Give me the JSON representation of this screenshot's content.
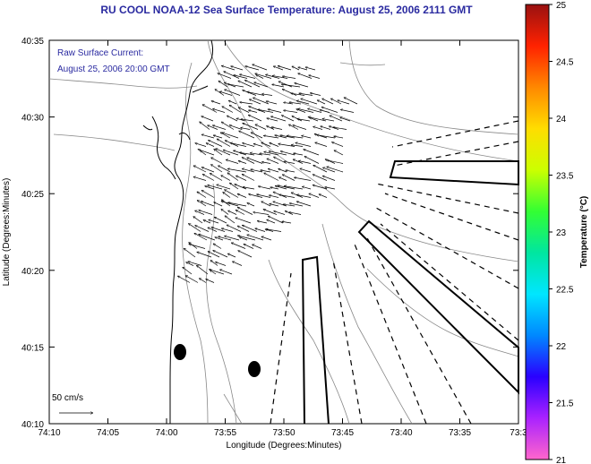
{
  "title": "RU COOL  NOAA-12  Sea Surface Temperature:  August 25, 2006 2111 GMT",
  "annotation": {
    "line1": "Raw Surface Current:",
    "line2": "August 25, 2006 20:00 GMT"
  },
  "scale_label": "50 cm/s",
  "axes": {
    "xlabel": "Longitude (Degrees:Minutes)",
    "ylabel": "Latitude (Degrees:Minutes)",
    "x_ticks": [
      "74:10",
      "74:05",
      "74:00",
      "73:55",
      "73:50",
      "73:45",
      "73:40",
      "73:35",
      "73:3"
    ],
    "y_ticks": [
      "40:35",
      "40:30",
      "40:25",
      "40:20",
      "40:15",
      "40:10"
    ]
  },
  "colorbar": {
    "label": "Temperature (°C)",
    "ticks": [
      "25",
      "24.5",
      "24",
      "23.5",
      "23",
      "22.5",
      "22",
      "21.5",
      "21"
    ],
    "range": [
      21,
      25
    ],
    "colors": [
      "#ff66cc",
      "#aa22ff",
      "#2a00ff",
      "#0088ff",
      "#00e6ff",
      "#00e6a0",
      "#33ff33",
      "#ccff00",
      "#ffdd00",
      "#ff8800",
      "#ff2200",
      "#991111"
    ]
  }
}
